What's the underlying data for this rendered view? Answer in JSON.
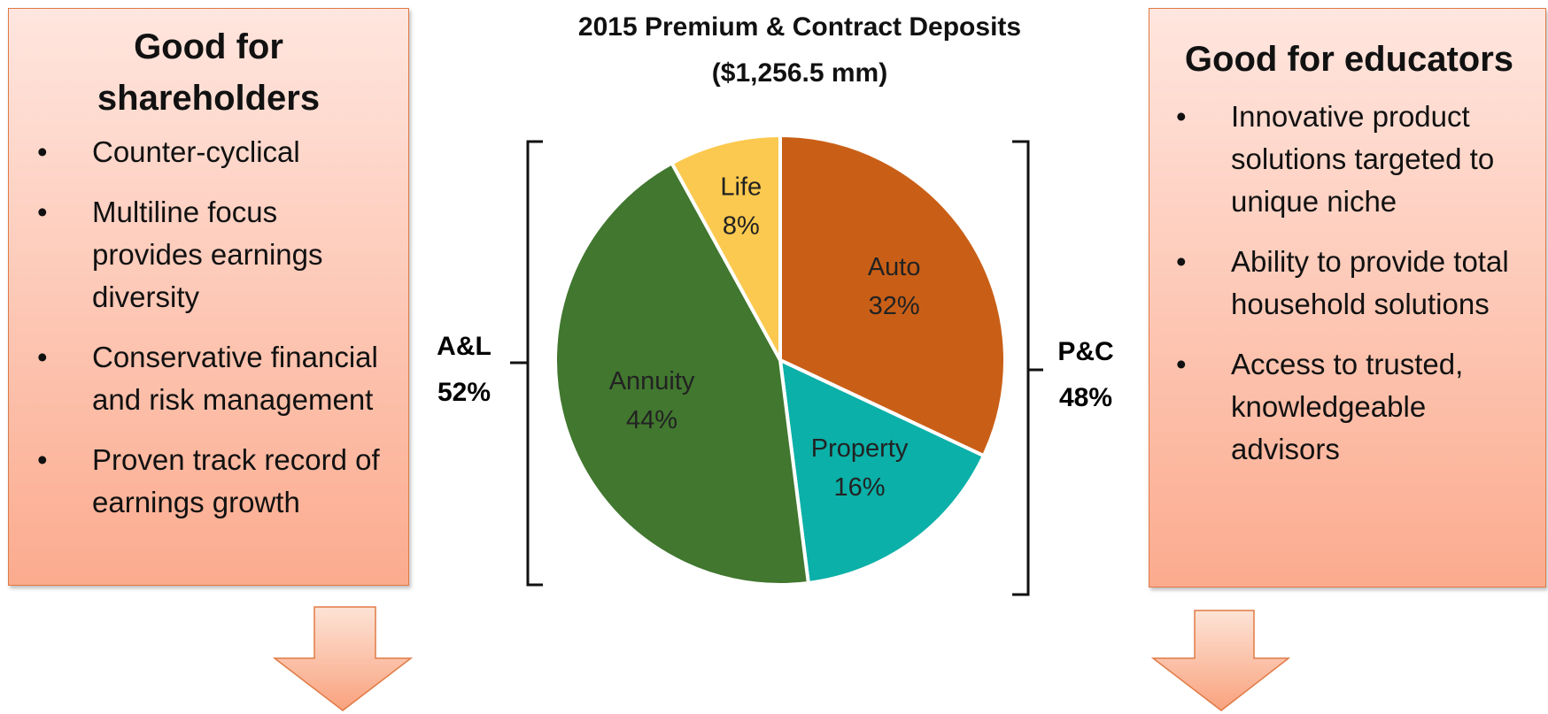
{
  "chart_data": {
    "type": "pie",
    "title": "2015 Premium & Contract Deposits",
    "subtitle": "($1,256.5 mm)",
    "categories": [
      "Auto",
      "Property",
      "Annuity",
      "Life"
    ],
    "values": [
      32,
      16,
      44,
      8
    ],
    "value_labels": [
      "32%",
      "16%",
      "44%",
      "8%"
    ],
    "colors": [
      "#c95f17",
      "#0bb0a8",
      "#41772f",
      "#fbc94f"
    ],
    "groups": [
      {
        "name": "A&L",
        "share": "52%"
      },
      {
        "name": "P&C",
        "share": "48%"
      }
    ]
  },
  "left_box": {
    "title": "Good for shareholders",
    "bullets": [
      "Counter-cyclical",
      "Multiline focus provides earnings diversity",
      "Conservative financial and risk management",
      "Proven track record of earnings growth"
    ]
  },
  "right_box": {
    "title": "Good for educators",
    "bullets": [
      "Innovative product solutions targeted to unique niche",
      "Ability to provide total household solutions",
      "Access to trusted, knowledgeable advisors"
    ]
  }
}
